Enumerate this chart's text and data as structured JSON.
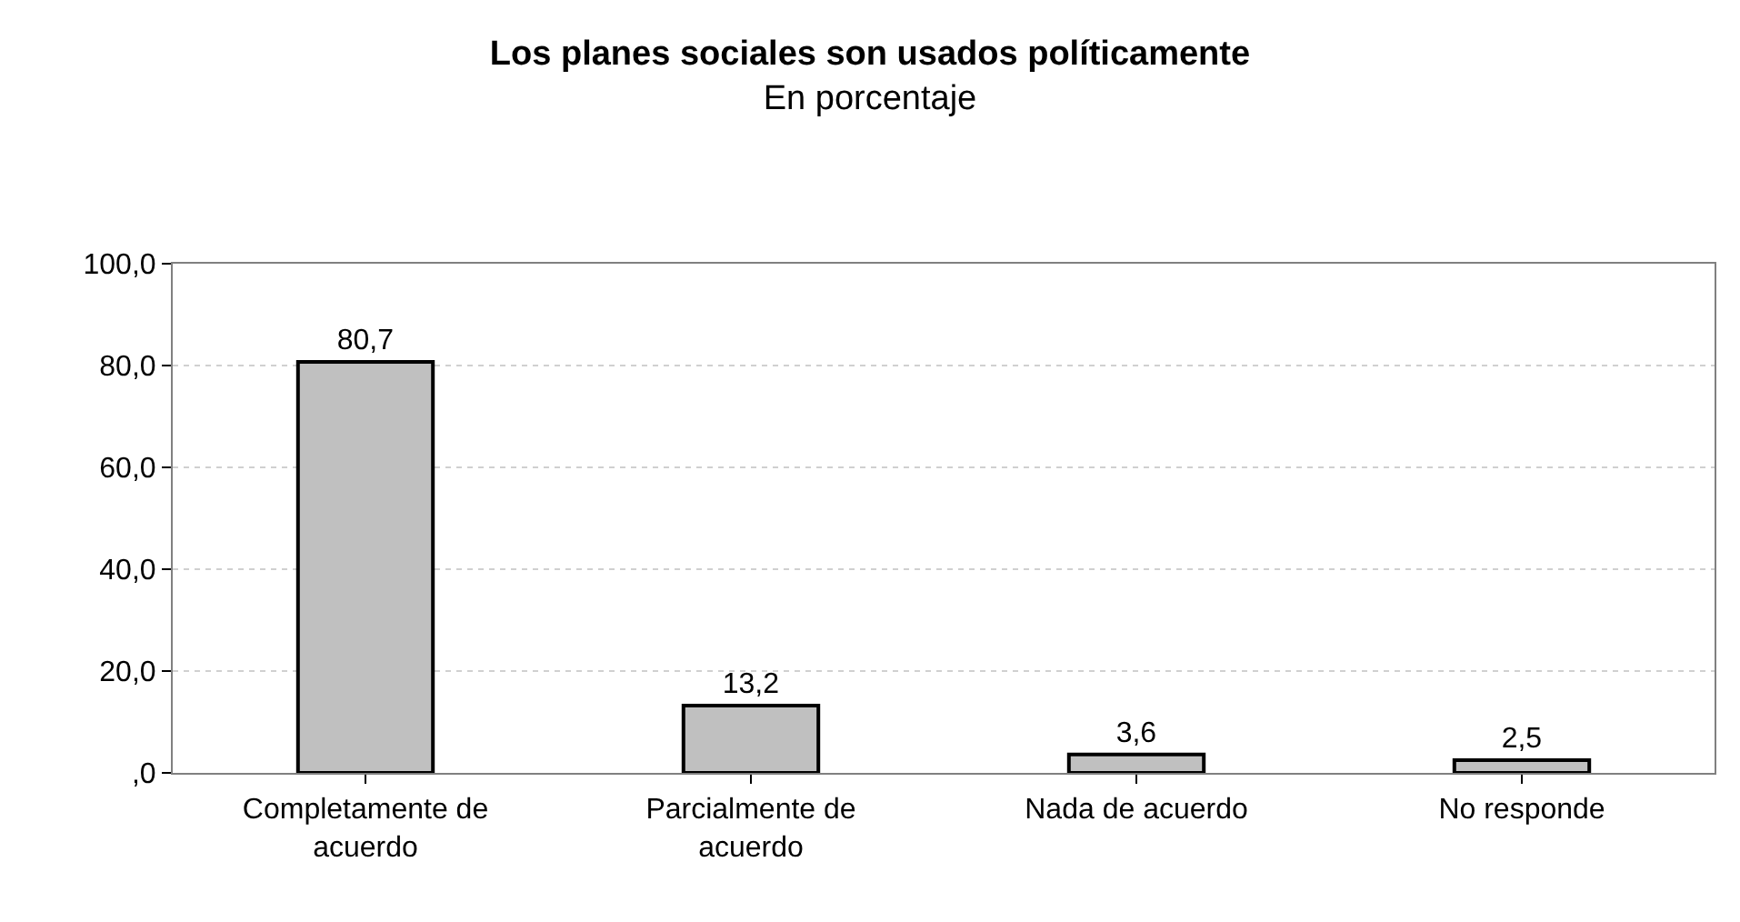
{
  "chart_data": {
    "type": "bar",
    "title": "Los planes sociales son usados políticamente",
    "subtitle": "En porcentaje",
    "categories": [
      "Completamente de acuerdo",
      "Parcialmente de acuerdo",
      "Nada de acuerdo",
      "No responde"
    ],
    "values": [
      80.7,
      13.2,
      3.6,
      2.5
    ],
    "value_labels": [
      "80,7",
      "13,2",
      "3,6",
      "2,5"
    ],
    "color": "#c0c0c0",
    "ylim": [
      0,
      100
    ],
    "yticks": [
      {
        "value": 0,
        "label": ",0"
      },
      {
        "value": 20,
        "label": "20,0"
      },
      {
        "value": 40,
        "label": "40,0"
      },
      {
        "value": 60,
        "label": "60,0"
      },
      {
        "value": 80,
        "label": "80,0"
      },
      {
        "value": 100,
        "label": "100,0"
      }
    ],
    "grid": "y"
  }
}
